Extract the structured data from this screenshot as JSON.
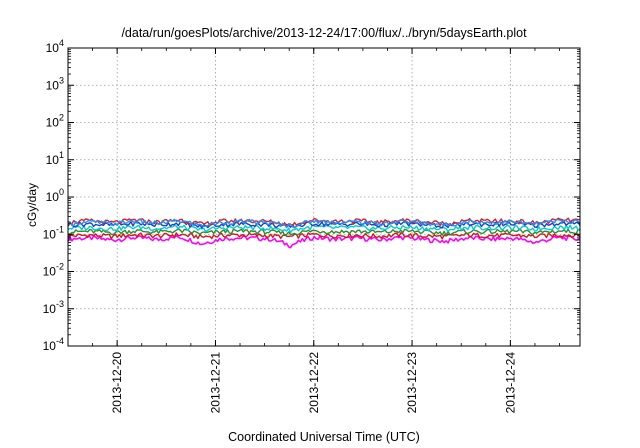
{
  "chart_data": {
    "type": "line",
    "title": "/data/run/goesPlots/archive/2013-12-24/17:00/flux/../bryn/5daysEarth.plot",
    "xlabel": "Coordinated Universal Time (UTC)",
    "ylabel": "cGy/day",
    "yscale": "log",
    "ylim": [
      0.0001,
      10000
    ],
    "xlim": [
      "2013-12-19T12:00",
      "2013-12-24T17:00"
    ],
    "y_ticks": [
      {
        "base": "10",
        "exp": "-4",
        "value": 0.0001
      },
      {
        "base": "10",
        "exp": "-3",
        "value": 0.001
      },
      {
        "base": "10",
        "exp": "-2",
        "value": 0.01
      },
      {
        "base": "10",
        "exp": "-1",
        "value": 0.1
      },
      {
        "base": "10",
        "exp": "0",
        "value": 1
      },
      {
        "base": "10",
        "exp": "1",
        "value": 10
      },
      {
        "base": "10",
        "exp": "2",
        "value": 100
      },
      {
        "base": "10",
        "exp": "3",
        "value": 1000
      },
      {
        "base": "10",
        "exp": "4",
        "value": 10000
      }
    ],
    "x_ticks": [
      "2013-12-20",
      "2013-12-21",
      "2013-12-22",
      "2013-12-23",
      "2013-12-24"
    ],
    "grid": true,
    "legend": "none",
    "series": [
      {
        "color": "#ff00ff",
        "values": [
          0.075,
          0.08,
          0.07,
          0.082,
          0.072,
          0.085,
          0.055,
          0.078,
          0.08,
          0.076,
          0.05,
          0.082,
          0.074,
          0.079,
          0.071,
          0.083,
          0.072,
          0.065,
          0.08,
          0.074,
          0.078,
          0.06,
          0.081,
          0.075
        ]
      },
      {
        "color": "#cc1a1a",
        "values": [
          0.09,
          0.095,
          0.088,
          0.097,
          0.09,
          0.098,
          0.085,
          0.094,
          0.096,
          0.091,
          0.086,
          0.098,
          0.092,
          0.095,
          0.089,
          0.097,
          0.09,
          0.087,
          0.096,
          0.092,
          0.094,
          0.088,
          0.097,
          0.093
        ]
      },
      {
        "color": "#2e8b2e",
        "values": [
          0.115,
          0.12,
          0.112,
          0.123,
          0.114,
          0.125,
          0.105,
          0.118,
          0.121,
          0.116,
          0.104,
          0.124,
          0.117,
          0.12,
          0.113,
          0.123,
          0.115,
          0.108,
          0.121,
          0.117,
          0.12,
          0.11,
          0.123,
          0.118
        ]
      },
      {
        "color": "#00cccc",
        "values": [
          0.145,
          0.152,
          0.14,
          0.156,
          0.143,
          0.158,
          0.13,
          0.149,
          0.153,
          0.146,
          0.128,
          0.157,
          0.148,
          0.152,
          0.142,
          0.156,
          0.145,
          0.135,
          0.153,
          0.148,
          0.151,
          0.138,
          0.156,
          0.15
        ]
      },
      {
        "color": "#1f3fbf",
        "values": [
          0.18,
          0.19,
          0.175,
          0.195,
          0.178,
          0.198,
          0.16,
          0.186,
          0.191,
          0.182,
          0.158,
          0.196,
          0.185,
          0.19,
          0.177,
          0.195,
          0.181,
          0.168,
          0.191,
          0.185,
          0.189,
          0.172,
          0.196,
          0.188
        ]
      },
      {
        "color": "#e02020",
        "values": [
          0.21,
          0.23,
          0.205,
          0.24,
          0.21,
          0.245,
          0.185,
          0.225,
          0.232,
          0.22,
          0.18,
          0.24,
          0.224,
          0.23,
          0.208,
          0.238,
          0.215,
          0.195,
          0.232,
          0.224,
          0.228,
          0.2,
          0.24,
          0.235
        ]
      },
      {
        "color": "#1e90ff",
        "values": [
          0.195,
          0.215,
          0.19,
          0.225,
          0.195,
          0.23,
          0.17,
          0.21,
          0.218,
          0.205,
          0.165,
          0.226,
          0.21,
          0.215,
          0.193,
          0.224,
          0.2,
          0.18,
          0.218,
          0.21,
          0.214,
          0.185,
          0.226,
          0.22
        ]
      }
    ]
  }
}
